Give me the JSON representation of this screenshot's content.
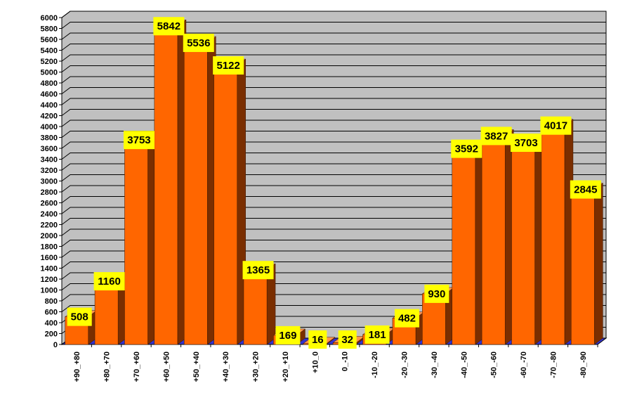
{
  "chart_data": {
    "type": "bar",
    "categories": [
      "+90_+80",
      "+80_+70",
      "+70_+60",
      "+60_+50",
      "+50_+40",
      "+40_+30",
      "+30_+20",
      "+20_+10",
      "+10_0",
      "0_-10",
      "-10_-20",
      "-20_-30",
      "-30_-40",
      "-40_-50",
      "-50_-60",
      "-60_-70",
      "-70_-80",
      "-80_-90"
    ],
    "values": [
      508,
      1160,
      3753,
      5842,
      5536,
      5122,
      1365,
      169,
      16,
      32,
      181,
      482,
      930,
      3592,
      3827,
      3703,
      4017,
      2845
    ],
    "ylim": [
      0,
      6000
    ],
    "ytick_step": 200,
    "grid": true,
    "legend": "none",
    "style": "3d",
    "colors": {
      "bar_front": "#ff6600",
      "bar_side": "#7a2e00",
      "bar_top": "#ff944d",
      "wall": "#c0c0c0",
      "floor": "#3333cc",
      "label_bg": "#ffff00"
    }
  }
}
